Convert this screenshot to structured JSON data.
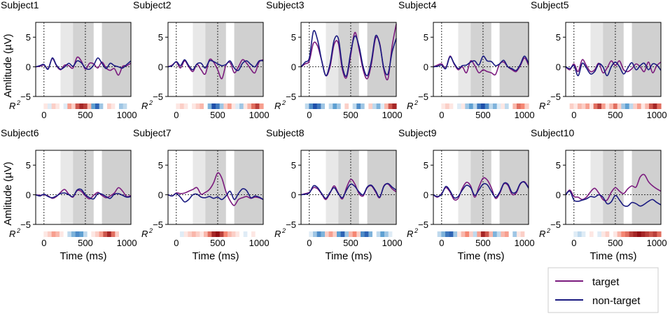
{
  "figure": {
    "ylabel": "Amlitude (µV)",
    "xlabel": "Time (ms)",
    "r2_label": "R",
    "r2_sup": "2"
  },
  "legend": {
    "entries": [
      {
        "label": "target",
        "color": "#7b1b7e"
      },
      {
        "label": "non-target",
        "color": "#1a1a80"
      }
    ]
  },
  "chart_data": {
    "type": "line",
    "xlim": [
      -100,
      1050
    ],
    "ylim": [
      -5,
      7.5
    ],
    "yticks": [
      -5,
      0,
      5
    ],
    "xticks": [
      0,
      500,
      1000
    ],
    "shaded_windows": [
      {
        "range": [
          200,
          350
        ],
        "shade": "light"
      },
      {
        "range": [
          350,
          600
        ],
        "shade": "medium"
      },
      {
        "range": [
          700,
          1050
        ],
        "shade": "dark"
      }
    ],
    "vlines_ms": [
      0,
      500
    ],
    "series_names": [
      "target",
      "non-target"
    ],
    "x": [
      -100,
      -50,
      0,
      50,
      100,
      150,
      200,
      250,
      300,
      350,
      400,
      450,
      500,
      550,
      600,
      650,
      700,
      750,
      800,
      850,
      900,
      950,
      1000,
      1050
    ],
    "subjects": [
      {
        "title": "Subject1",
        "target": [
          0.0,
          0.1,
          0.3,
          -0.3,
          1.4,
          0.2,
          -0.5,
          0.3,
          0.2,
          -0.2,
          1.6,
          1.0,
          -0.4,
          0.6,
          0.5,
          -0.2,
          0.8,
          -0.2,
          -0.6,
          -0.3,
          -1.4,
          0.1,
          0.2,
          0.6
        ],
        "nontarget": [
          0.0,
          0.2,
          0.4,
          -0.4,
          1.5,
          0.3,
          -0.4,
          0.0,
          0.6,
          0.1,
          1.0,
          0.7,
          -0.2,
          -0.4,
          0.3,
          1.5,
          0.6,
          -0.3,
          0.6,
          0.2,
          0.0,
          -0.2,
          0.4,
          1.0
        ],
        "r2": [
          0,
          0,
          0.1,
          -0.1,
          0.2,
          0.1,
          0,
          -0.1,
          0.4,
          0.2,
          0.7,
          0.9,
          0.8,
          0.3,
          -0.5,
          -0.8,
          -0.3,
          0,
          0.2,
          0.1,
          0,
          -0.3,
          -0.2,
          0
        ]
      },
      {
        "title": "Subject2",
        "target": [
          0.0,
          0.3,
          0.8,
          -0.2,
          1.0,
          0.0,
          -0.8,
          0.4,
          -0.5,
          -1.2,
          1.2,
          0.8,
          -0.5,
          -2.0,
          0.3,
          0.7,
          -1.0,
          0.0,
          1.2,
          0.6,
          -0.4,
          -1.0,
          0.8,
          1.2
        ],
        "nontarget": [
          0.0,
          0.2,
          0.9,
          0.2,
          1.2,
          0.2,
          -0.5,
          0.5,
          0.6,
          -0.2,
          1.0,
          0.9,
          0.5,
          0.2,
          0.4,
          1.0,
          -0.2,
          -0.6,
          0.6,
          1.0,
          0.4,
          0.0,
          1.0,
          1.0
        ],
        "r2": [
          0,
          0,
          0.1,
          0.2,
          0.1,
          0,
          0.1,
          0.2,
          0.3,
          0,
          -0.4,
          -0.9,
          -0.7,
          -0.3,
          0.2,
          0.4,
          0.1,
          -0.1,
          -0.3,
          0.1,
          0.3,
          0.6,
          0.8,
          0.4
        ]
      },
      {
        "title": "Subject3",
        "target": [
          0.0,
          0.5,
          1.0,
          4.0,
          3.5,
          1.0,
          -1.5,
          0.0,
          3.8,
          4.0,
          -0.5,
          -1.8,
          2.0,
          5.8,
          3.0,
          -0.5,
          -2.0,
          0.5,
          4.8,
          4.0,
          -0.5,
          -2.0,
          3.5,
          7.2
        ],
        "nontarget": [
          0.0,
          0.8,
          1.5,
          6.0,
          4.5,
          1.0,
          -1.5,
          0.5,
          4.5,
          4.8,
          0.0,
          -1.5,
          2.5,
          5.2,
          3.5,
          0.0,
          -1.5,
          1.0,
          5.2,
          3.8,
          -0.2,
          -1.2,
          2.5,
          4.8
        ],
        "r2": [
          0,
          -0.2,
          -0.6,
          -0.9,
          -0.7,
          -0.3,
          0,
          -0.2,
          -0.5,
          -0.3,
          0,
          0.2,
          0,
          -0.2,
          -0.6,
          -0.3,
          0,
          0.2,
          -0.2,
          -0.4,
          -0.1,
          0.3,
          0.7,
          0.9
        ]
      },
      {
        "title": "Subject4",
        "target": [
          0.0,
          0.3,
          0.5,
          -0.2,
          1.8,
          0.5,
          -0.5,
          0.0,
          -1.0,
          1.0,
          0.2,
          -1.0,
          -0.5,
          -0.8,
          -1.0,
          -1.3,
          0.5,
          0.8,
          0.0,
          -0.5,
          -0.8,
          0.2,
          1.5,
          0.3
        ],
        "nontarget": [
          0.0,
          0.1,
          0.3,
          -0.3,
          1.7,
          0.6,
          -0.3,
          0.2,
          0.3,
          0.8,
          1.0,
          0.3,
          1.8,
          1.0,
          0.9,
          0.2,
          0.5,
          1.1,
          0.0,
          -0.3,
          -0.6,
          0.4,
          1.8,
          0.6
        ],
        "r2": [
          0,
          0,
          0.1,
          0.2,
          0.1,
          0,
          -0.1,
          0.1,
          -0.3,
          -0.5,
          -0.2,
          -0.7,
          -0.9,
          -0.6,
          -0.2,
          -0.4,
          -0.1,
          0.1,
          -0.2,
          0,
          0.3,
          0.6,
          0.5,
          0.2
        ]
      },
      {
        "title": "Subject5",
        "target": [
          0.0,
          -0.5,
          0.5,
          -0.8,
          1.2,
          0.2,
          -0.8,
          -0.5,
          0.6,
          -1.0,
          -0.2,
          1.0,
          0.2,
          1.0,
          -0.5,
          -0.8,
          -0.3,
          0.5,
          0.0,
          -0.8,
          0.8,
          -1.0,
          0.2,
          0.8
        ],
        "nontarget": [
          0.0,
          -0.3,
          0.2,
          -1.5,
          0.6,
          -0.2,
          -1.2,
          -0.8,
          0.5,
          0.0,
          -1.5,
          0.0,
          0.8,
          0.0,
          -1.2,
          -0.2,
          0.7,
          -0.5,
          0.2,
          0.6,
          -0.5,
          0.5,
          0.3,
          -0.6
        ],
        "r2": [
          0,
          0.2,
          0.1,
          0.3,
          0.2,
          0.4,
          0.1,
          0.6,
          0.8,
          0.4,
          0.1,
          0.3,
          0.6,
          0.2,
          -0.3,
          -0.5,
          -0.2,
          0.2,
          0.4,
          0.1,
          0.3,
          0.7,
          0.9,
          0.6
        ]
      },
      {
        "title": "Subject6",
        "target": [
          0.0,
          -0.1,
          0.0,
          -0.2,
          -0.6,
          -0.3,
          0.4,
          0.9,
          0.1,
          -0.4,
          0.7,
          0.6,
          -0.2,
          -0.7,
          -0.1,
          0.4,
          -0.1,
          -0.5,
          -0.2,
          0.3,
          1.2,
          0.6,
          -0.3,
          -0.1
        ],
        "nontarget": [
          0.0,
          -0.2,
          0.1,
          -0.3,
          -0.5,
          -0.2,
          0.2,
          0.3,
          0.0,
          -0.3,
          0.8,
          0.9,
          0.0,
          -0.5,
          -0.7,
          0.2,
          0.1,
          -0.3,
          -0.6,
          0.1,
          0.2,
          -0.1,
          -0.4,
          -0.3
        ],
        "r2": [
          0,
          0,
          0.1,
          0.2,
          0.4,
          0.3,
          0.1,
          0,
          -0.2,
          -0.4,
          -0.6,
          -0.5,
          -0.2,
          0,
          0.1,
          0.2,
          0.4,
          0.7,
          0.9,
          0.6,
          0.2,
          0,
          0,
          0
        ]
      },
      {
        "title": "Subject7",
        "target": [
          0.0,
          -0.2,
          0.3,
          0.2,
          0.3,
          0.6,
          0.9,
          1.2,
          0.1,
          0.4,
          0.9,
          2.0,
          3.7,
          2.8,
          0.5,
          -1.0,
          -1.8,
          -0.8,
          -0.5,
          -0.3,
          -0.6,
          -0.4,
          -0.5,
          -0.8
        ],
        "nontarget": [
          0.0,
          -0.2,
          0.2,
          -0.4,
          -1.2,
          -0.8,
          0.0,
          0.1,
          -0.4,
          -0.5,
          -0.3,
          -0.6,
          -0.4,
          -0.8,
          -0.2,
          0.6,
          -0.8,
          0.2,
          1.0,
          0.7,
          -0.5,
          -0.2,
          -0.4,
          -0.8
        ],
        "r2": [
          0,
          0,
          0,
          -0.1,
          0.1,
          0.2,
          0.3,
          0.2,
          0.1,
          0.3,
          0.6,
          0.9,
          1.0,
          0.8,
          0.5,
          0.3,
          0.2,
          0.1,
          0,
          -0.1,
          0,
          0.1,
          0,
          0
        ]
      },
      {
        "title": "Subject8",
        "target": [
          0.0,
          0.2,
          0.4,
          1.2,
          1.0,
          0.1,
          -0.8,
          0.3,
          1.5,
          0.3,
          -0.7,
          1.2,
          2.6,
          1.8,
          0.2,
          -0.2,
          1.2,
          1.5,
          0.5,
          -0.5,
          1.5,
          1.8,
          1.0,
          0.5
        ],
        "nontarget": [
          0.0,
          0.1,
          0.3,
          1.5,
          1.2,
          0.2,
          -0.6,
          0.4,
          1.2,
          0.2,
          -0.5,
          0.8,
          1.8,
          1.4,
          0.5,
          0.0,
          1.3,
          1.6,
          0.7,
          -0.4,
          1.4,
          1.9,
          1.3,
          0.8
        ],
        "r2": [
          0,
          0,
          -0.1,
          -0.3,
          -0.6,
          -0.4,
          0.2,
          0.4,
          0.2,
          -0.5,
          -0.8,
          -0.3,
          0.3,
          0.5,
          0.2,
          -0.6,
          -0.8,
          -0.4,
          0,
          -0.2,
          -0.5,
          -0.3,
          -0.1,
          0
        ]
      },
      {
        "title": "Subject9",
        "target": [
          0.0,
          -0.4,
          0.2,
          1.2,
          0.5,
          -0.8,
          -0.6,
          1.1,
          2.1,
          1.5,
          -0.4,
          1.3,
          2.8,
          2.5,
          1.2,
          -0.6,
          0.2,
          1.8,
          1.6,
          0.1,
          0.3,
          1.8,
          2.2,
          1.2
        ],
        "nontarget": [
          0.0,
          -0.3,
          0.1,
          1.4,
          0.7,
          -0.5,
          -0.3,
          0.8,
          1.6,
          1.2,
          -0.1,
          0.8,
          1.8,
          1.7,
          0.6,
          -0.4,
          0.4,
          1.9,
          1.8,
          0.4,
          0.5,
          1.9,
          2.1,
          1.1
        ],
        "r2": [
          0,
          -0.2,
          -0.4,
          -0.7,
          -0.8,
          -0.3,
          0.1,
          0.3,
          0.5,
          0.2,
          -0.2,
          0.4,
          0.9,
          0.7,
          0.3,
          -0.4,
          -0.2,
          0.3,
          0.4,
          0,
          -0.3,
          0.1,
          0.2,
          0
        ]
      },
      {
        "title": "Subject10",
        "target": [
          0.0,
          0.8,
          -0.3,
          -0.4,
          -0.8,
          -0.4,
          0.5,
          1.1,
          0.3,
          -0.8,
          -0.9,
          0.4,
          1.2,
          0.6,
          0.2,
          1.0,
          1.5,
          1.3,
          3.0,
          3.4,
          2.2,
          1.5,
          1.0,
          0.6
        ],
        "nontarget": [
          0.0,
          0.6,
          -0.9,
          -1.1,
          -0.9,
          -0.7,
          -0.3,
          -0.4,
          0.0,
          -0.4,
          -1.5,
          -1.2,
          -0.1,
          -0.9,
          -1.8,
          -1.9,
          -1.3,
          -1.5,
          -1.9,
          -1.6,
          -1.1,
          -0.8,
          -1.3,
          -1.7
        ],
        "r2": [
          0,
          0,
          -0.1,
          -0.2,
          -0.1,
          0,
          0.1,
          0,
          -0.1,
          0.1,
          0.2,
          0,
          0.1,
          0.3,
          0.5,
          0.6,
          0.8,
          0.9,
          1.0,
          0.9,
          0.8,
          0.7,
          0.8,
          0.6
        ]
      }
    ]
  }
}
